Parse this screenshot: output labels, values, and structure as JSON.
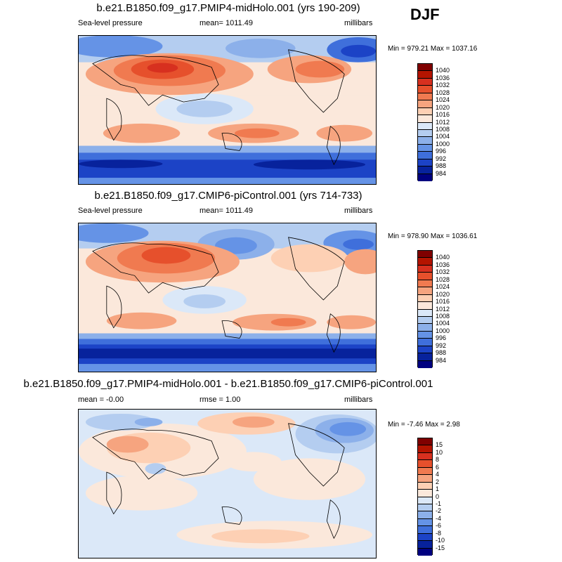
{
  "season": "DJF",
  "panels": [
    {
      "title": "b.e21.B1850.f09_g17.PMIP4-midHolo.001 (yrs 190-209)",
      "left_label": "Sea-level pressure",
      "center_label": "mean= 1011.49",
      "right_label": "millibars",
      "minmax": "Min = 979.21 Max = 1037.16",
      "colorbar": {
        "labels": [
          "1040",
          "1036",
          "1032",
          "1028",
          "1024",
          "1020",
          "1016",
          "1012",
          "1008",
          "1004",
          "1000",
          "996",
          "992",
          "988",
          "984"
        ],
        "colors": [
          "#800000",
          "#b41400",
          "#d7301f",
          "#e6502c",
          "#f07a50",
          "#f6a47f",
          "#fdd0b4",
          "#fbe8db",
          "#dbe8f8",
          "#b4cdf0",
          "#8cb0ea",
          "#6593e6",
          "#3f6fdb",
          "#1c43c6",
          "#07229c",
          "#000080"
        ]
      }
    },
    {
      "title": "b.e21.B1850.f09_g17.CMIP6-piControl.001 (yrs 714-733)",
      "left_label": "Sea-level pressure",
      "center_label": "mean= 1011.49",
      "right_label": "millibars",
      "minmax": "Min = 978.90 Max = 1036.61",
      "colorbar": {
        "labels": [
          "1040",
          "1036",
          "1032",
          "1028",
          "1024",
          "1020",
          "1016",
          "1012",
          "1008",
          "1004",
          "1000",
          "996",
          "992",
          "988",
          "984"
        ],
        "colors": [
          "#800000",
          "#b41400",
          "#d7301f",
          "#e6502c",
          "#f07a50",
          "#f6a47f",
          "#fdd0b4",
          "#fbe8db",
          "#dbe8f8",
          "#b4cdf0",
          "#8cb0ea",
          "#6593e6",
          "#3f6fdb",
          "#1c43c6",
          "#07229c",
          "#000080"
        ]
      }
    },
    {
      "title": "b.e21.B1850.f09_g17.PMIP4-midHolo.001 - b.e21.B1850.f09_g17.CMIP6-piControl.001",
      "left_label": "mean =  -0.00",
      "center_label": "rmse =   1.00",
      "right_label": "millibars",
      "minmax": "Min =  -7.46 Max =   2.98",
      "colorbar": {
        "labels": [
          "15",
          "10",
          "8",
          "6",
          "4",
          "2",
          "1",
          "0",
          "-1",
          "-2",
          "-4",
          "-6",
          "-8",
          "-10",
          "-15"
        ],
        "colors": [
          "#800000",
          "#b41400",
          "#d7301f",
          "#e6502c",
          "#f07a50",
          "#f6a47f",
          "#fdd0b4",
          "#fbe8db",
          "#dbe8f8",
          "#b4cdf0",
          "#8cb0ea",
          "#6593e6",
          "#3f6fdb",
          "#1c43c6",
          "#07229c",
          "#000080"
        ]
      }
    }
  ]
}
